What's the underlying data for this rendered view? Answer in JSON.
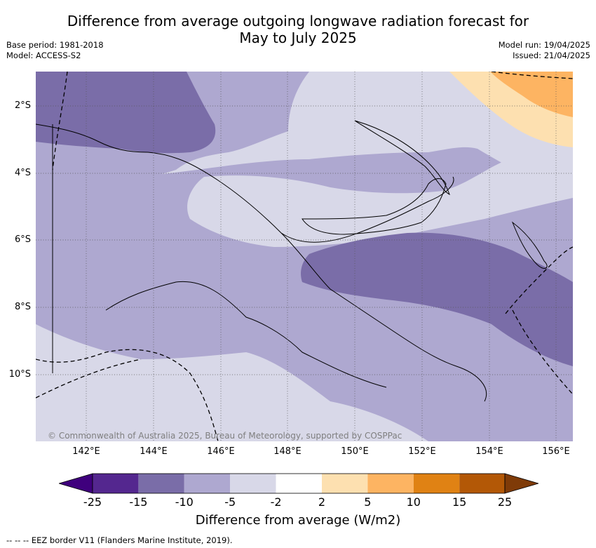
{
  "title_line1": "Difference from average outgoing longwave radiation forecast for",
  "title_line2": "May to July 2025",
  "base_period": "Base period: 1981-2018",
  "model": "Model: ACCESS-S2",
  "model_run": "Model run: 19/04/2025",
  "issued": "Issued: 21/04/2025",
  "lat_ticks": [
    "2°S",
    "4°S",
    "6°S",
    "8°S",
    "10°S"
  ],
  "lon_ticks": [
    "142°E",
    "144°E",
    "146°E",
    "148°E",
    "150°E",
    "152°E",
    "154°E",
    "156°E"
  ],
  "copyright": "© Commonwealth of Australia 2025, Bureau of Meteorology, supported by COSPPac",
  "colorbar": {
    "tick_labels": [
      "-25",
      "-15",
      "-10",
      "-5",
      "-2",
      "2",
      "5",
      "10",
      "15",
      "25"
    ],
    "colors": [
      "#3f007d",
      "#54278f",
      "#7a6da8",
      "#aea8d0",
      "#d8d8e8",
      "#ffffff",
      "#fde0b0",
      "#fdb462",
      "#e08214",
      "#b35806",
      "#7f3b08"
    ],
    "label": "Difference from average (W/m2)"
  },
  "eez_note": "-- -- -- EEZ border V11 (Flanders Marine Institute, 2019)."
}
